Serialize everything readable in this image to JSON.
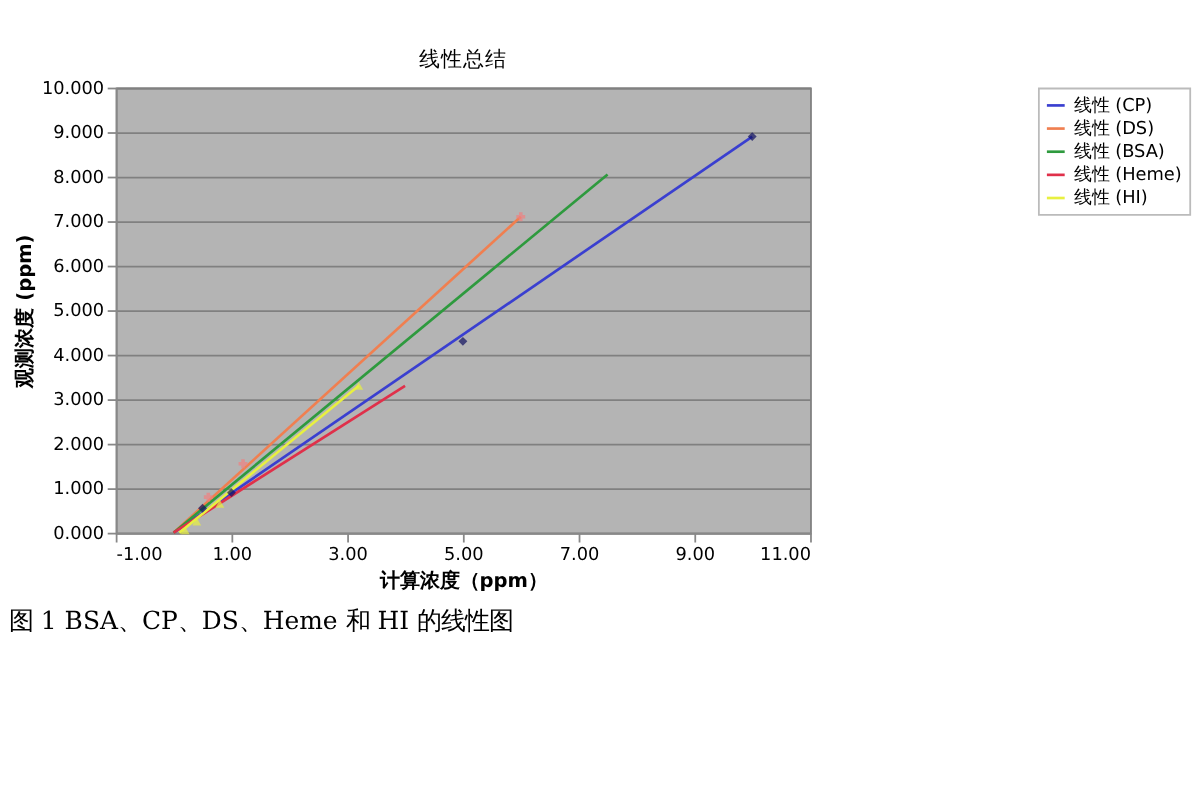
{
  "chart_data": {
    "type": "line",
    "title": "线性总结",
    "xlabel": "计算浓度（ppm）",
    "ylabel": "观测浓度 (ppm)",
    "xlim": [
      -1,
      11
    ],
    "ylim": [
      0,
      10
    ],
    "xticks": [
      {
        "value": -1,
        "label": "-1.00"
      },
      {
        "value": 1,
        "label": "1.00"
      },
      {
        "value": 3,
        "label": "3.00"
      },
      {
        "value": 5,
        "label": "5.00"
      },
      {
        "value": 7,
        "label": "7.00"
      },
      {
        "value": 9,
        "label": "9.00"
      },
      {
        "value": 11,
        "label": "11.00"
      }
    ],
    "yticks": [
      {
        "value": 0,
        "label": "0.000"
      },
      {
        "value": 1,
        "label": "1.000"
      },
      {
        "value": 2,
        "label": "2.000"
      },
      {
        "value": 3,
        "label": "3.000"
      },
      {
        "value": 4,
        "label": "4.000"
      },
      {
        "value": 5,
        "label": "5.000"
      },
      {
        "value": 6,
        "label": "6.000"
      },
      {
        "value": 7,
        "label": "7.000"
      },
      {
        "value": 8,
        "label": "8.000"
      },
      {
        "value": 9,
        "label": "9.000"
      },
      {
        "value": 10,
        "label": "10.000"
      }
    ],
    "grid": "y",
    "legend": "right",
    "line_style": "solid",
    "series": [
      {
        "name": "线性 (CP)",
        "color": "#3a3fd0",
        "x": [
          0,
          10
        ],
        "values": [
          0,
          8.9
        ]
      },
      {
        "name": "线性 (DS)",
        "color": "#f07f50",
        "x": [
          0,
          6
        ],
        "values": [
          0,
          7.1
        ]
      },
      {
        "name": "线性 (BSA)",
        "color": "#2e9a3e",
        "x": [
          0,
          7.5
        ],
        "values": [
          0,
          8.05
        ]
      },
      {
        "name": "线性 (Heme)",
        "color": "#e0304a",
        "x": [
          0,
          4
        ],
        "values": [
          0,
          3.3
        ]
      },
      {
        "name": "线性 (HI)",
        "color": "#e8f040",
        "x": [
          0.1,
          3.2
        ],
        "values": [
          0,
          3.3
        ]
      },
      {
        "type": "scatter",
        "marker": "diamond",
        "color": "#101060",
        "x": [
          0.5,
          1,
          5,
          10
        ],
        "values": [
          0.55,
          0.9,
          4.3,
          8.9
        ]
      },
      {
        "type": "scatter",
        "marker": "cross",
        "color": "#f08080",
        "x": [
          0.6,
          1.2,
          6
        ],
        "values": [
          0.8,
          1.55,
          7.1
        ]
      },
      {
        "type": "scatter",
        "marker": "triangle",
        "color": "#e8f040",
        "x": [
          0.2,
          0.4,
          0.8,
          3.2
        ],
        "values": [
          0.05,
          0.25,
          0.65,
          3.3
        ]
      }
    ],
    "annotations": [
      "图 1 BSA、CP、DS、Heme 和 HI 的线性图"
    ]
  }
}
